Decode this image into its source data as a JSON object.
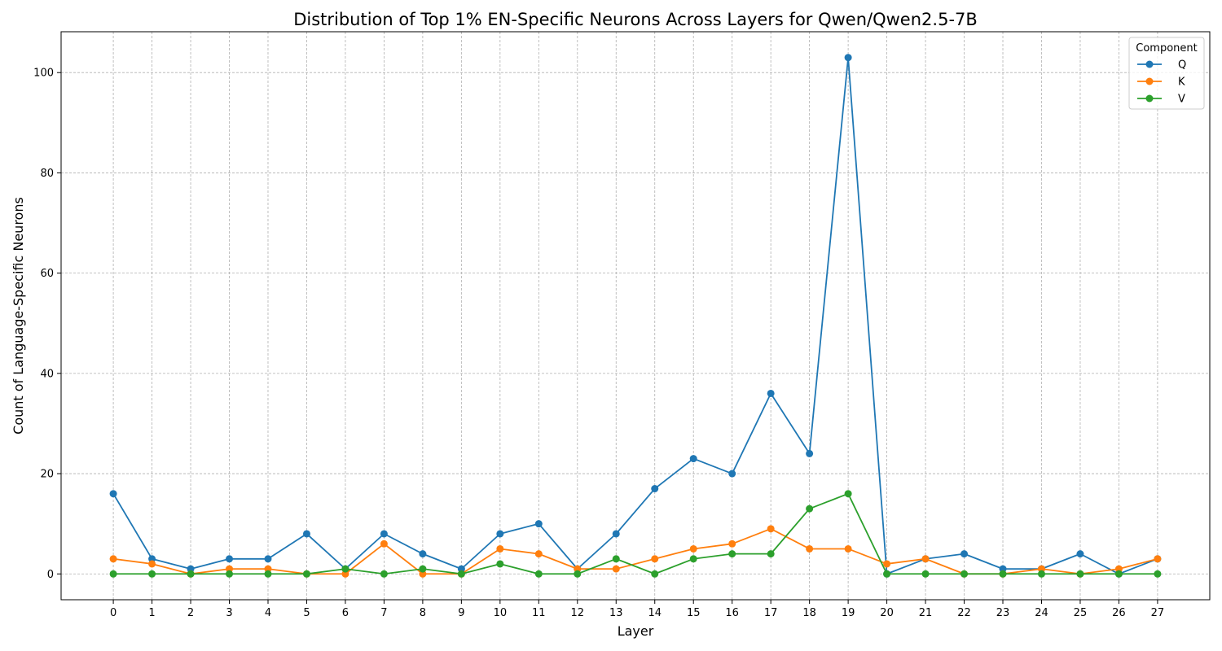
{
  "chart_data": {
    "type": "line",
    "title": "Distribution of Top 1% EN-Specific Neurons Across Layers for Qwen/Qwen2.5-7B",
    "xlabel": "Layer",
    "ylabel": "Count of Language-Specific Neurons",
    "x": [
      0,
      1,
      2,
      3,
      4,
      5,
      6,
      7,
      8,
      9,
      10,
      11,
      12,
      13,
      14,
      15,
      16,
      17,
      18,
      19,
      20,
      21,
      22,
      23,
      24,
      25,
      26,
      27
    ],
    "xlim": [
      -1.35,
      28.35
    ],
    "ylim": [
      -5.15,
      108.15
    ],
    "yticks": [
      0,
      20,
      40,
      60,
      80,
      100
    ],
    "grid": true,
    "legend": {
      "title": "Component",
      "placement": "top-right"
    },
    "series": [
      {
        "name": "Q",
        "color": "#1f77b4",
        "values": [
          16,
          3,
          1,
          3,
          3,
          8,
          1,
          8,
          4,
          1,
          8,
          10,
          1,
          8,
          17,
          23,
          20,
          36,
          24,
          103,
          0,
          3,
          4,
          1,
          1,
          4,
          0,
          3
        ]
      },
      {
        "name": "K",
        "color": "#ff7f0e",
        "values": [
          3,
          2,
          0,
          1,
          1,
          0,
          0,
          6,
          0,
          0,
          5,
          4,
          1,
          1,
          3,
          5,
          6,
          9,
          5,
          5,
          2,
          3,
          0,
          0,
          1,
          0,
          1,
          3
        ]
      },
      {
        "name": "V",
        "color": "#2ca02c",
        "values": [
          0,
          0,
          0,
          0,
          0,
          0,
          1,
          0,
          1,
          0,
          2,
          0,
          0,
          3,
          0,
          3,
          4,
          4,
          13,
          16,
          0,
          0,
          0,
          0,
          0,
          0,
          0,
          0
        ]
      }
    ]
  }
}
